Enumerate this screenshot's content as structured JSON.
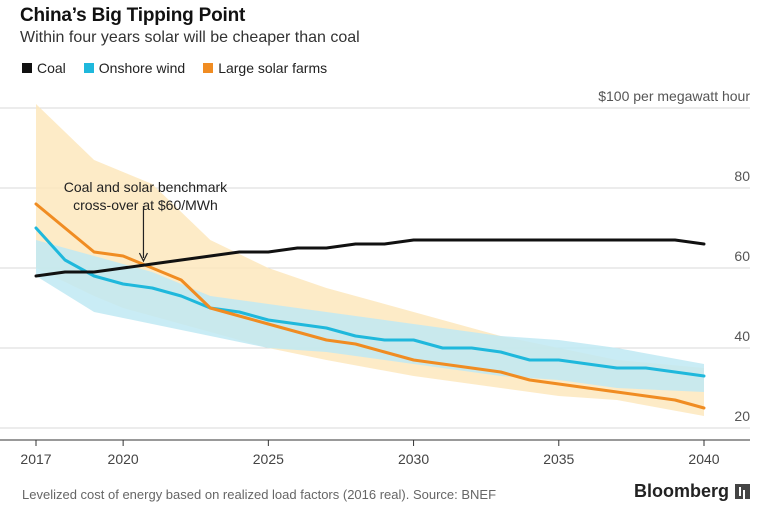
{
  "header": {
    "title": "China’s Big Tipping Point",
    "subtitle": "Within four years solar will be cheaper than coal"
  },
  "legend": [
    {
      "label": "Coal",
      "color": "#111111"
    },
    {
      "label": "Onshore wind",
      "color": "#1fb8dc"
    },
    {
      "label": "Large solar farms",
      "color": "#f08c22"
    }
  ],
  "footer": {
    "source": "Levelized cost of energy based on realized load factors (2016 real). Source: BNEF",
    "brand": "Bloomberg",
    "brand_icon": "bloomberg-terminal-icon"
  },
  "chart_data": {
    "type": "line",
    "unit_label": "$100 per megawatt hour",
    "xlim": [
      2017,
      2040
    ],
    "ylim": [
      17,
      100
    ],
    "x_ticks": [
      2017,
      2020,
      2025,
      2030,
      2035,
      2040
    ],
    "y_ticks": [
      20,
      40,
      60,
      80
    ],
    "grid": "horizontal",
    "legend_position": "top-left",
    "annotation": {
      "text": [
        "Coal and solar benchmark",
        "cross-over at $60/MWh"
      ],
      "x": 2020.7,
      "y": 60.5
    },
    "bands": [
      {
        "series": "Large solar farms",
        "color": "#fde8bd",
        "x": [
          2017,
          2019,
          2020,
          2021,
          2022,
          2023,
          2025,
          2027,
          2030,
          2033,
          2035,
          2037,
          2040
        ],
        "upper": [
          101,
          87,
          84,
          81,
          74,
          67,
          60,
          55,
          49,
          43,
          40,
          37,
          35
        ],
        "lower": [
          60,
          53,
          50,
          48,
          46,
          44,
          40,
          37,
          33,
          30,
          28,
          27,
          23
        ]
      },
      {
        "series": "Onshore wind",
        "color": "#bfe9f3",
        "x": [
          2017,
          2019,
          2021,
          2023,
          2025,
          2027,
          2030,
          2033,
          2035,
          2037,
          2040
        ],
        "upper": [
          67,
          63,
          59,
          53,
          51,
          49,
          46,
          43,
          42,
          40,
          36
        ],
        "lower": [
          58,
          49,
          46,
          43,
          40,
          39,
          36,
          33,
          32,
          30,
          29
        ]
      }
    ],
    "series": [
      {
        "name": "Coal",
        "color": "#111111",
        "x": [
          2017,
          2018,
          2019,
          2020,
          2021,
          2022,
          2023,
          2024,
          2025,
          2026,
          2027,
          2028,
          2029,
          2030,
          2031,
          2032,
          2033,
          2034,
          2035,
          2036,
          2037,
          2038,
          2039,
          2040
        ],
        "values": [
          58,
          59,
          59,
          60,
          61,
          62,
          63,
          64,
          64,
          65,
          65,
          66,
          66,
          67,
          67,
          67,
          67,
          67,
          67,
          67,
          67,
          67,
          67,
          66
        ]
      },
      {
        "name": "Onshore wind",
        "color": "#1fb8dc",
        "x": [
          2017,
          2018,
          2019,
          2020,
          2021,
          2022,
          2023,
          2024,
          2025,
          2026,
          2027,
          2028,
          2029,
          2030,
          2031,
          2032,
          2033,
          2034,
          2035,
          2036,
          2037,
          2038,
          2039,
          2040
        ],
        "values": [
          70,
          62,
          58,
          56,
          55,
          53,
          50,
          49,
          47,
          46,
          45,
          43,
          42,
          42,
          40,
          40,
          39,
          37,
          37,
          36,
          35,
          35,
          34,
          33
        ]
      },
      {
        "name": "Large solar farms",
        "color": "#f08c22",
        "x": [
          2017,
          2018,
          2019,
          2020,
          2021,
          2022,
          2023,
          2024,
          2025,
          2026,
          2027,
          2028,
          2029,
          2030,
          2031,
          2032,
          2033,
          2034,
          2035,
          2036,
          2037,
          2038,
          2039,
          2040
        ],
        "values": [
          76,
          70,
          64,
          63,
          60,
          57,
          50,
          48,
          46,
          44,
          42,
          41,
          39,
          37,
          36,
          35,
          34,
          32,
          31,
          30,
          29,
          28,
          27,
          25
        ]
      }
    ]
  }
}
